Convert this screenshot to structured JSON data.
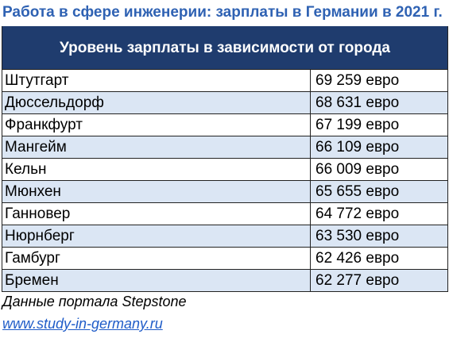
{
  "title": "Работа в сфере инженерии: зарплаты в Германии в 2021 г.",
  "table": {
    "header": "Уровень зарплаты в зависимости от города",
    "rows": [
      {
        "city": "Штутгарт",
        "salary": "69 259 евро"
      },
      {
        "city": "Дюссельдорф",
        "salary": "68 631 евро"
      },
      {
        "city": "Франкфурт",
        "salary": "67 199 евро"
      },
      {
        "city": "Мангейм",
        "salary": "66 109 евро"
      },
      {
        "city": "Кельн",
        "salary": "66 009 евро"
      },
      {
        "city": "Мюнхен",
        "salary": "65 655 евро"
      },
      {
        "city": "Ганновер",
        "salary": "64 772 евро"
      },
      {
        "city": "Нюрнберг",
        "salary": "63 530 евро"
      },
      {
        "city": "Гамбург",
        "salary": "62 426 евро"
      },
      {
        "city": "Бремен",
        "salary": "62 277 евро"
      }
    ]
  },
  "footer": {
    "source": "Данные портала Stepstone",
    "link": "www.study-in-germany.ru"
  },
  "colors": {
    "title": "#2f62b3",
    "header_bg": "#1f3c6e",
    "row_alt_bg": "#dbe6f4",
    "link": "#1f5cc8"
  }
}
